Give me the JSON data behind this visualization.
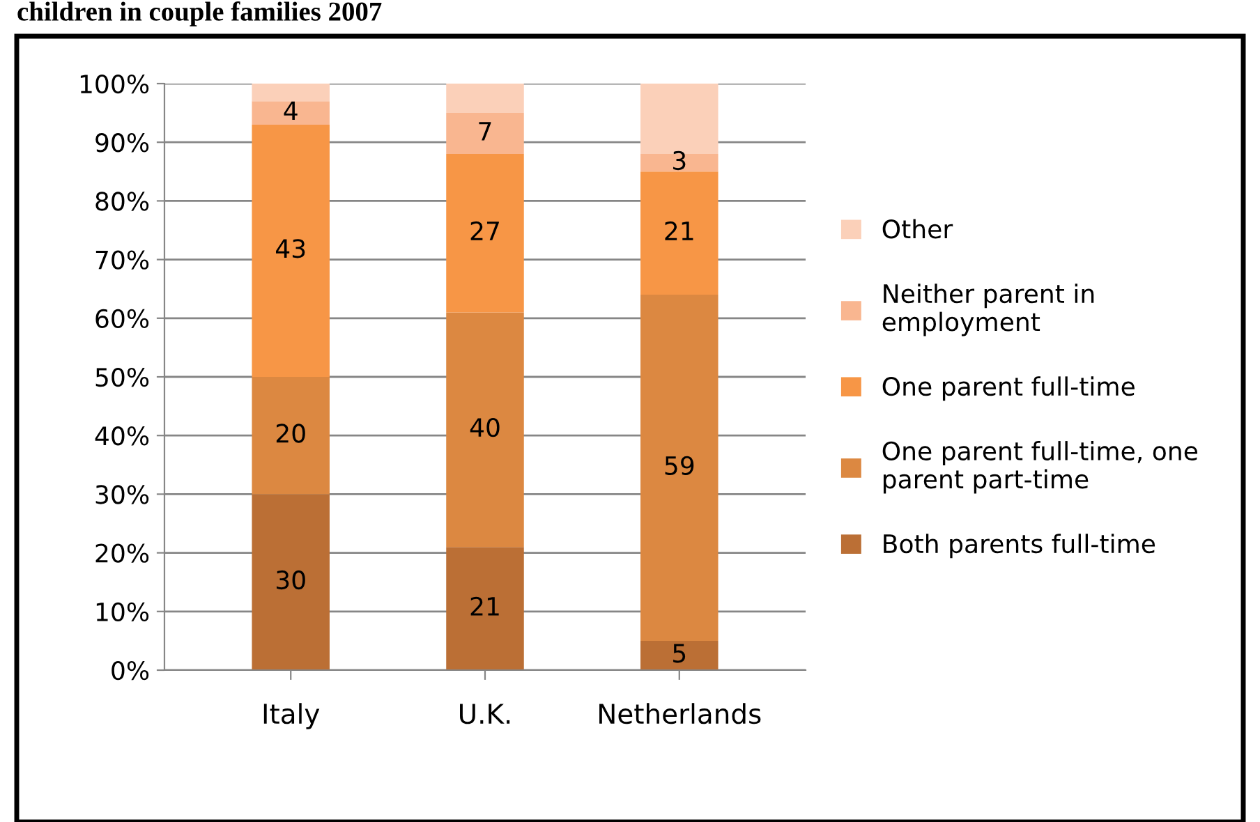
{
  "chart_data": {
    "type": "bar",
    "stacked": true,
    "title": "children in couple families 2007",
    "categories": [
      "Italy",
      "U.K.",
      "Netherlands"
    ],
    "series": [
      {
        "name": "Both parents full-time",
        "color": "#bb6f35",
        "values": [
          30,
          21,
          5
        ],
        "value_labels": [
          "30",
          "21",
          "5"
        ]
      },
      {
        "name": "One parent full-time, one parent part-time",
        "color": "#dc8841",
        "values": [
          20,
          40,
          59
        ],
        "value_labels": [
          "20",
          "40",
          "59"
        ]
      },
      {
        "name": "One parent full-time",
        "color": "#f79646",
        "values": [
          43,
          27,
          21
        ],
        "value_labels": [
          "43",
          "27",
          "21"
        ]
      },
      {
        "name": "Neither parent in employment",
        "color": "#f9b690",
        "values": [
          4,
          7,
          3
        ],
        "value_labels": [
          "4",
          "7",
          "3"
        ]
      },
      {
        "name": "Other",
        "color": "#fbd0b9",
        "values": [
          3,
          5,
          12
        ],
        "value_labels": [
          null,
          null,
          null
        ]
      }
    ],
    "ylim": [
      0,
      100
    ],
    "yticks": [
      {
        "value": 0,
        "label": "0%"
      },
      {
        "value": 10,
        "label": "10%"
      },
      {
        "value": 20,
        "label": "20%"
      },
      {
        "value": 30,
        "label": "30%"
      },
      {
        "value": 40,
        "label": "40%"
      },
      {
        "value": 50,
        "label": "50%"
      },
      {
        "value": 60,
        "label": "60%"
      },
      {
        "value": 70,
        "label": "70%"
      },
      {
        "value": 80,
        "label": "80%"
      },
      {
        "value": 90,
        "label": "90%"
      },
      {
        "value": 100,
        "label": "100%"
      }
    ],
    "grid": "y",
    "legend": "right"
  }
}
